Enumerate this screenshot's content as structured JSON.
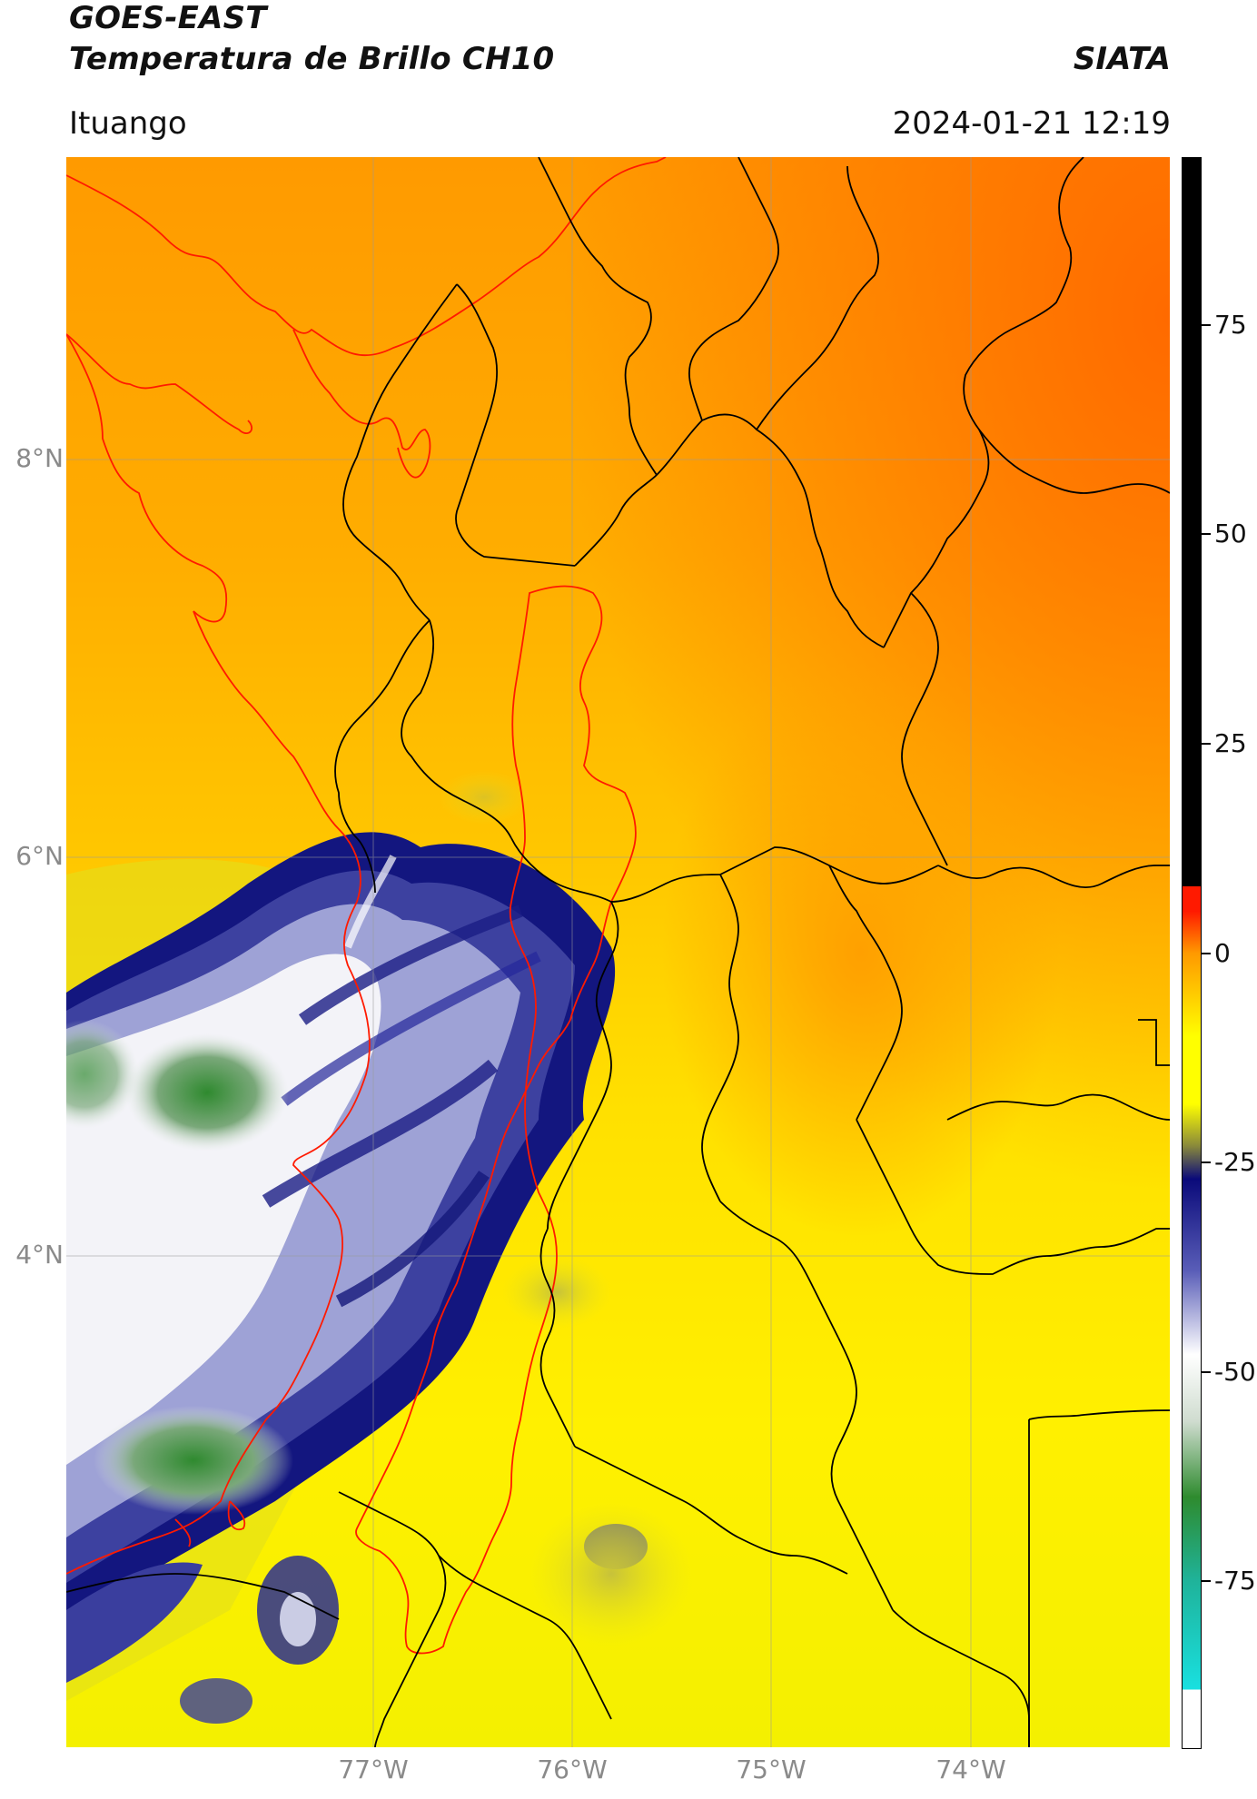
{
  "header": {
    "title_line1": "GOES-EAST",
    "title_line2": "Temperatura de Brillo CH10",
    "brand": "SIATA",
    "region": "Ituango",
    "datetime": "2024-01-21 12:19"
  },
  "map": {
    "lat_labels": [
      "8°N",
      "6°N",
      "4°N"
    ],
    "lon_labels": [
      "77°W",
      "76°W",
      "75°W",
      "74°W"
    ],
    "gridlines": true,
    "features": [
      "coastline-red",
      "department-borders-black",
      "basin-outline-red"
    ]
  },
  "colorbar": {
    "tick_labels": [
      "75",
      "50",
      "25",
      "0",
      "-25",
      "-50",
      "-75"
    ],
    "tick_values": [
      75,
      50,
      25,
      0,
      -25,
      -50,
      -75
    ],
    "range": [
      -95,
      95
    ],
    "colors": {
      "black": "#000000",
      "red": "#ff1a00",
      "orange": "#ff9900",
      "yellow": "#ffff00",
      "olive": "#8a8a3a",
      "navy": "#0a0a7a",
      "white": "#ffffff",
      "green": "#2e8b2e",
      "teal": "#1fb39a",
      "cyan": "#19e0e0"
    }
  }
}
